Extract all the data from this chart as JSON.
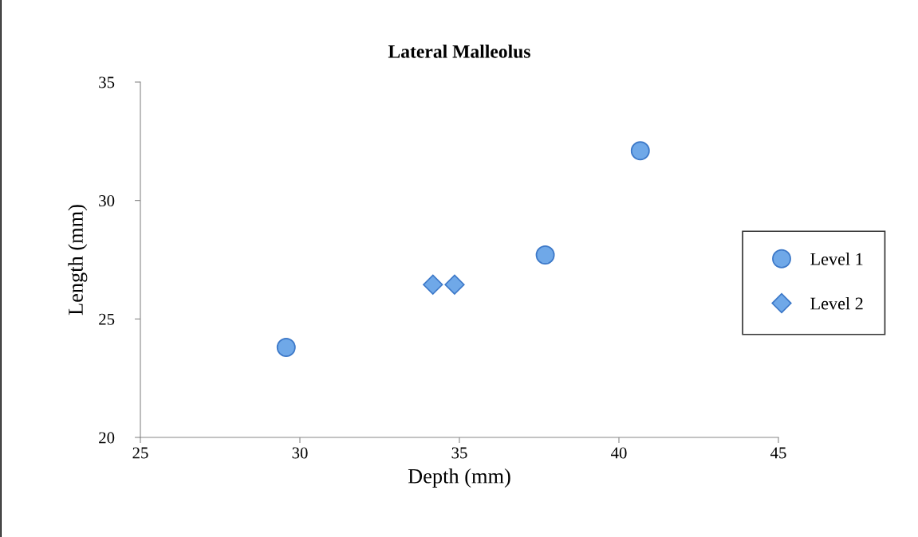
{
  "chart_data": {
    "type": "scatter",
    "title": "Lateral Malleolus",
    "xlabel": "Depth (mm)",
    "ylabel": "Length (mm)",
    "series": [
      {
        "name": "Level 1",
        "color": "#6fa8e8",
        "marker": "circle",
        "x": [
          29.57,
          37.69,
          40.67
        ],
        "values": [
          23.8,
          27.7,
          32.1
        ]
      },
      {
        "name": "Level 2",
        "color": "#6fa8e8",
        "marker": "diamond",
        "x": [
          34.17,
          34.85
        ],
        "values": [
          26.45,
          26.45
        ]
      }
    ],
    "xlim": [
      25,
      45
    ],
    "xticks": [
      25,
      30,
      35,
      40,
      45
    ],
    "ylim": [
      20,
      35
    ],
    "yticks": [
      20,
      25,
      30,
      35
    ],
    "grid": false,
    "legend": "right"
  }
}
